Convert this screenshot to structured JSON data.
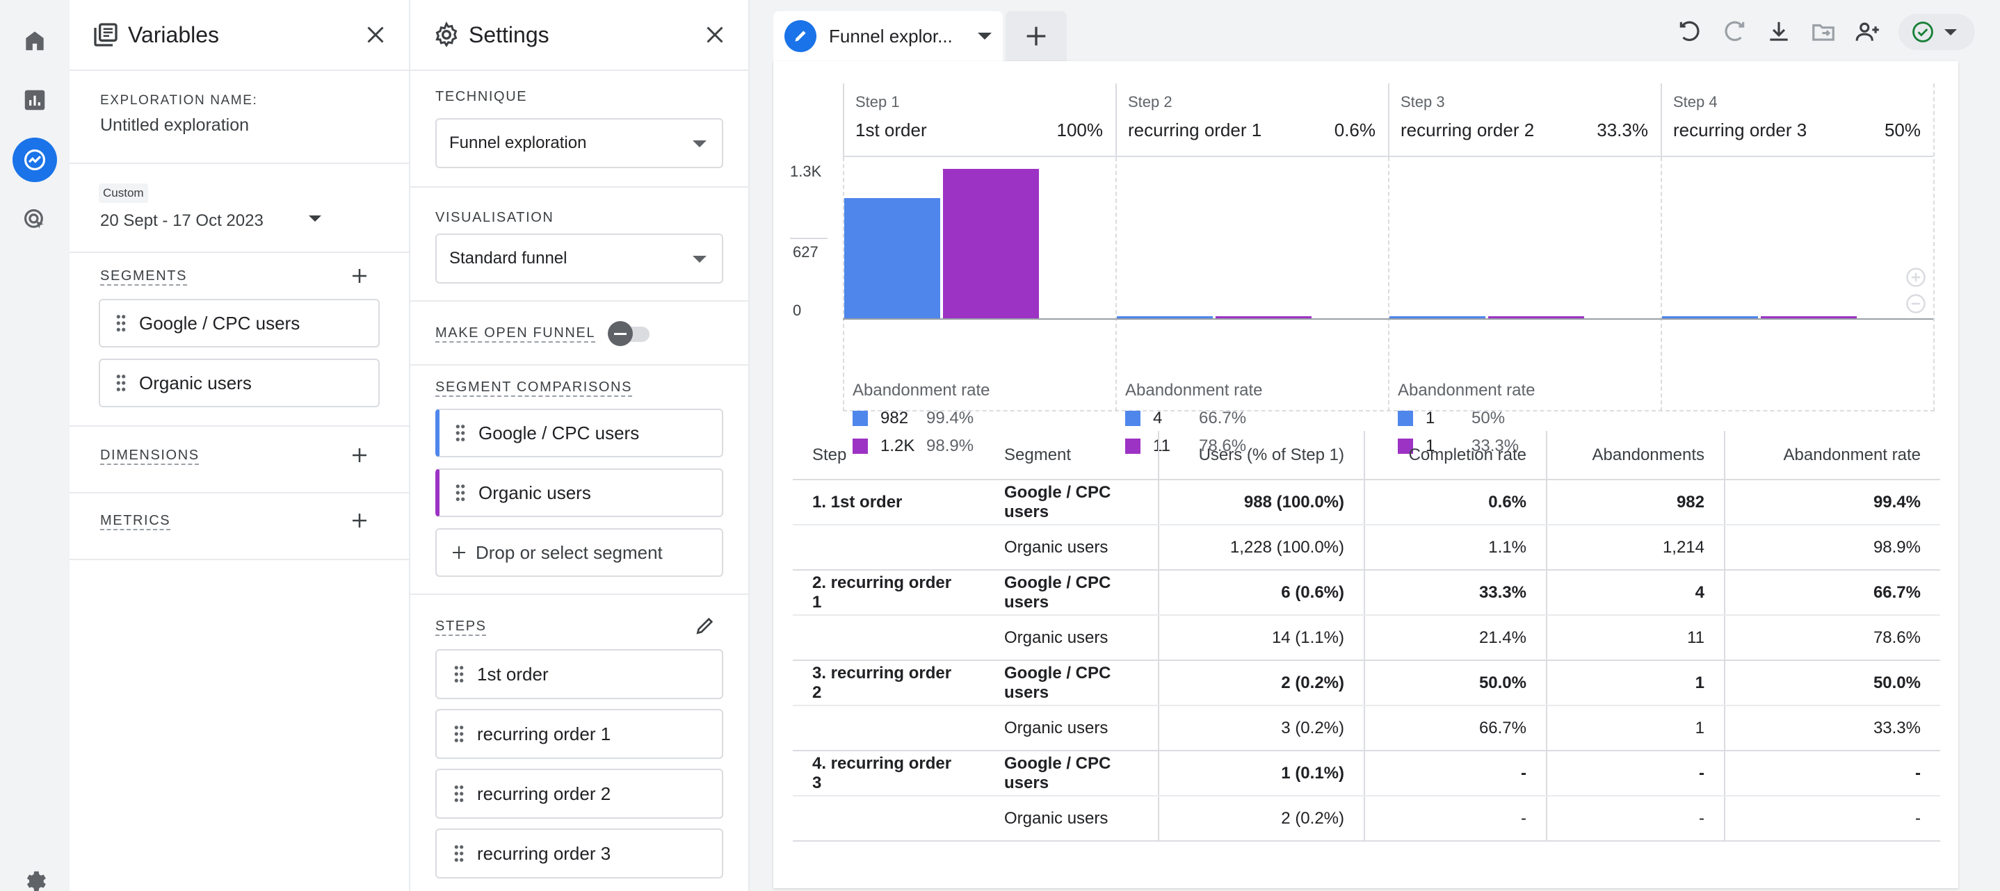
{
  "rail": {
    "items": [
      {
        "name": "home",
        "icon": "home-icon",
        "active": false
      },
      {
        "name": "reports",
        "icon": "bar-chart-icon",
        "active": false
      },
      {
        "name": "explore",
        "icon": "explore-icon",
        "active": true
      },
      {
        "name": "advertising",
        "icon": "target-cursor-icon",
        "active": false
      }
    ],
    "bottom_icon": "gear-icon"
  },
  "variables": {
    "title": "Variables",
    "exploration_name_label": "EXPLORATION NAME:",
    "exploration_name": "Untitled exploration",
    "date_badge": "Custom",
    "date_range": "20 Sept - 17 Oct 2023",
    "segments_label": "SEGMENTS",
    "segments": [
      "Google / CPC users",
      "Organic users"
    ],
    "dimensions_label": "DIMENSIONS",
    "metrics_label": "METRICS"
  },
  "settings": {
    "title": "Settings",
    "technique_label": "TECHNIQUE",
    "technique": "Funnel exploration",
    "visualisation_label": "VISUALISATION",
    "visualisation": "Standard funnel",
    "open_funnel_label": "MAKE OPEN FUNNEL",
    "open_funnel_on": false,
    "segment_comparisons_label": "SEGMENT COMPARISONS",
    "segment_comparisons": [
      {
        "label": "Google / CPC users",
        "color": "#4f86ec"
      },
      {
        "label": "Organic users",
        "color": "#9c33c4"
      }
    ],
    "drop_segment": "Drop or select segment",
    "steps_label": "STEPS",
    "steps": [
      "1st order",
      "recurring order 1",
      "recurring order 2",
      "recurring order 3"
    ]
  },
  "tab": {
    "label": "Funnel explor...",
    "add_icon": "plus-icon"
  },
  "toolbar": {
    "icons": [
      "undo-icon",
      "redo-icon",
      "download-icon",
      "move-to-folder-icon",
      "share-users-icon"
    ],
    "status_icon": "check-circle-icon"
  },
  "colors": {
    "series_a": "#4f86ec",
    "series_b": "#9c33c4",
    "accent": "#1a73e8",
    "status_green": "#188038"
  },
  "funnel": {
    "steps": [
      {
        "num": "Step 1",
        "name": "1st order",
        "pct": "100%"
      },
      {
        "num": "Step 2",
        "name": "recurring order 1",
        "pct": "0.6%"
      },
      {
        "num": "Step 3",
        "name": "recurring order 2",
        "pct": "33.3%"
      },
      {
        "num": "Step 4",
        "name": "recurring order 3",
        "pct": "50%"
      }
    ],
    "y_ticks": [
      "1.3K",
      "627",
      "0"
    ],
    "abandonment_label": "Abandonment rate",
    "abandonment": [
      [
        {
          "val": "982",
          "pct": "99.4%"
        },
        {
          "val": "1.2K",
          "pct": "98.9%"
        }
      ],
      [
        {
          "val": "4",
          "pct": "66.7%"
        },
        {
          "val": "11",
          "pct": "78.6%"
        }
      ],
      [
        {
          "val": "1",
          "pct": "50%"
        },
        {
          "val": "1",
          "pct": "33.3%"
        }
      ]
    ]
  },
  "chart_data": {
    "type": "bar",
    "categories": [
      "1st order",
      "recurring order 1",
      "recurring order 2",
      "recurring order 3"
    ],
    "series": [
      {
        "name": "Google / CPC users",
        "values": [
          988,
          6,
          2,
          1
        ]
      },
      {
        "name": "Organic users",
        "values": [
          1228,
          14,
          3,
          2
        ]
      }
    ],
    "ylim": [
      0,
      1300
    ],
    "y_ticks": [
      "1.3K",
      "627",
      "0"
    ]
  },
  "table": {
    "headers": [
      "Step",
      "Segment",
      "Users (% of Step 1)",
      "Completion rate",
      "Abandonments",
      "Abandonment rate"
    ],
    "rows": [
      {
        "step": "1. 1st order",
        "segment": "Google / CPC users",
        "users": "988 (100.0%)",
        "completion": "0.6%",
        "abandonments": "982",
        "abandon_rate": "99.4%"
      },
      {
        "step": "",
        "segment": "Organic users",
        "users": "1,228 (100.0%)",
        "completion": "1.1%",
        "abandonments": "1,214",
        "abandon_rate": "98.9%"
      },
      {
        "step": "2. recurring order 1",
        "segment": "Google / CPC users",
        "users": "6 (0.6%)",
        "completion": "33.3%",
        "abandonments": "4",
        "abandon_rate": "66.7%"
      },
      {
        "step": "",
        "segment": "Organic users",
        "users": "14 (1.1%)",
        "completion": "21.4%",
        "abandonments": "11",
        "abandon_rate": "78.6%"
      },
      {
        "step": "3. recurring order 2",
        "segment": "Google / CPC users",
        "users": "2 (0.2%)",
        "completion": "50.0%",
        "abandonments": "1",
        "abandon_rate": "50.0%"
      },
      {
        "step": "",
        "segment": "Organic users",
        "users": "3 (0.2%)",
        "completion": "66.7%",
        "abandonments": "1",
        "abandon_rate": "33.3%"
      },
      {
        "step": "4. recurring order 3",
        "segment": "Google / CPC users",
        "users": "1 (0.1%)",
        "completion": "-",
        "abandonments": "-",
        "abandon_rate": "-"
      },
      {
        "step": "",
        "segment": "Organic users",
        "users": "2 (0.2%)",
        "completion": "-",
        "abandonments": "-",
        "abandon_rate": "-"
      }
    ]
  }
}
